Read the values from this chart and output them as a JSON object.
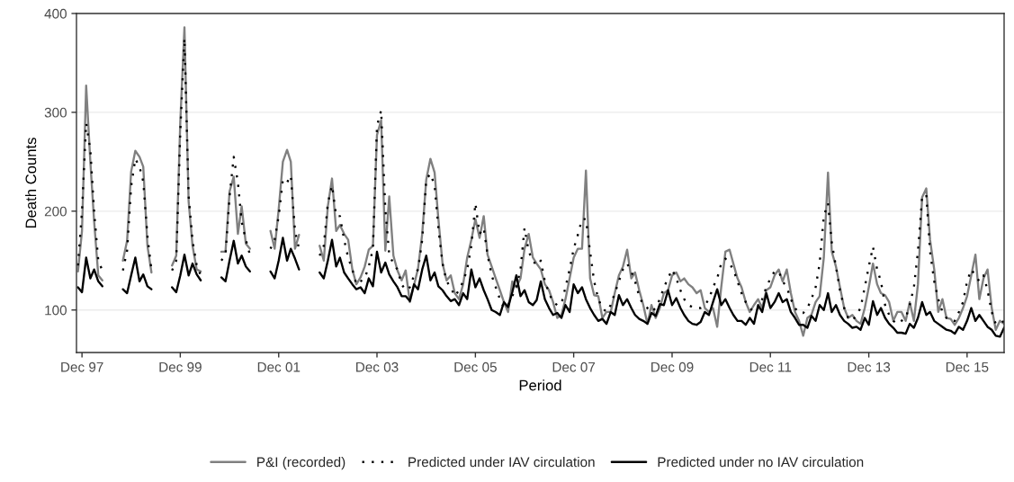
{
  "chart_data": {
    "type": "line",
    "xlabel": "Period",
    "ylabel": "Death Counts",
    "x": [
      "1997-11",
      "1997-12",
      "1998-01",
      "1998-02",
      "1998-03",
      "1998-04",
      "1998-05",
      "1998-07",
      "1998-10",
      "1998-11",
      "1998-12",
      "1999-01",
      "1999-02",
      "1999-03",
      "1999-04",
      "1999-05",
      "1999-07",
      "1999-10",
      "1999-11",
      "1999-12",
      "2000-01",
      "2000-02",
      "2000-03",
      "2000-04",
      "2000-05",
      "2000-07",
      "2000-10",
      "2000-11",
      "2000-12",
      "2001-01",
      "2001-02",
      "2001-03",
      "2001-04",
      "2001-05",
      "2001-07",
      "2001-10",
      "2001-11",
      "2001-12",
      "2002-01",
      "2002-02",
      "2002-03",
      "2002-04",
      "2002-05",
      "2002-07",
      "2002-10",
      "2002-11",
      "2002-12",
      "2003-01",
      "2003-02",
      "2003-03",
      "2003-04",
      "2003-05",
      "2003-06",
      "2003-07",
      "2003-08",
      "2003-09",
      "2003-10",
      "2003-11",
      "2003-12",
      "2004-01",
      "2004-02",
      "2004-03",
      "2004-04",
      "2004-05",
      "2004-06",
      "2004-07",
      "2004-08",
      "2004-09",
      "2004-10",
      "2004-11",
      "2004-12",
      "2005-01",
      "2005-02",
      "2005-03",
      "2005-04",
      "2005-05",
      "2005-06",
      "2005-07",
      "2005-08",
      "2005-09",
      "2005-10",
      "2005-11",
      "2005-12",
      "2006-01",
      "2006-02",
      "2006-03",
      "2006-04",
      "2006-05",
      "2006-06",
      "2006-07",
      "2006-08",
      "2006-09",
      "2006-10",
      "2006-11",
      "2006-12",
      "2007-01",
      "2007-02",
      "2007-03",
      "2007-04",
      "2007-05",
      "2007-06",
      "2007-07",
      "2007-08",
      "2007-09",
      "2007-10",
      "2007-11",
      "2007-12",
      "2008-01",
      "2008-02",
      "2008-03",
      "2008-04",
      "2008-05",
      "2008-06",
      "2008-07",
      "2008-08",
      "2008-09",
      "2008-10",
      "2008-11",
      "2008-12",
      "2009-01",
      "2009-02",
      "2009-03",
      "2009-04",
      "2009-05",
      "2009-06",
      "2009-07",
      "2009-08",
      "2009-09",
      "2009-10",
      "2009-11",
      "2009-12",
      "2010-01",
      "2010-02",
      "2010-03",
      "2010-04",
      "2010-05",
      "2010-06",
      "2010-07",
      "2010-08",
      "2010-09",
      "2010-10",
      "2010-11",
      "2010-12",
      "2011-01",
      "2011-02",
      "2011-03",
      "2011-04",
      "2011-05",
      "2011-06",
      "2011-07",
      "2011-08",
      "2011-09",
      "2011-10",
      "2011-11",
      "2011-12",
      "2012-01",
      "2012-02",
      "2012-03",
      "2012-04",
      "2012-05",
      "2012-06",
      "2012-07",
      "2012-08",
      "2012-09",
      "2012-10",
      "2012-11",
      "2012-12",
      "2013-01",
      "2013-02",
      "2013-03",
      "2013-04",
      "2013-05",
      "2013-06",
      "2013-07",
      "2013-08",
      "2013-09",
      "2013-10",
      "2013-11",
      "2013-12",
      "2014-01",
      "2014-02",
      "2014-03",
      "2014-04",
      "2014-05",
      "2014-06",
      "2014-07",
      "2014-08",
      "2014-09",
      "2014-10",
      "2014-11",
      "2014-12",
      "2015-01",
      "2015-02",
      "2015-03",
      "2015-04",
      "2015-05",
      "2015-06",
      "2015-07",
      "2015-08",
      "2015-09",
      "2015-10",
      "2015-11",
      "2015-12",
      "2016-01",
      "2016-02",
      "2016-03",
      "2016-04",
      "2016-05",
      "2016-06",
      "2016-07",
      "2016-08",
      "2016-09"
    ],
    "series": [
      {
        "name": "P&I (recorded)",
        "color": "#808080",
        "line_style": "solid",
        "values": [
          139,
          180,
          327,
          250,
          190,
          135,
          130,
          null,
          150,
          170,
          240,
          261,
          255,
          245,
          165,
          138,
          null,
          145,
          155,
          290,
          386,
          210,
          165,
          141,
          139,
          null,
          159,
          159,
          220,
          235,
          177,
          205,
          167,
          162,
          null,
          180,
          162,
          202,
          250,
          262,
          250,
          162,
          176,
          null,
          165,
          150,
          205,
          233,
          180,
          186,
          177,
          171,
          141,
          126,
          133,
          144,
          161,
          165,
          277,
          292,
          160,
          215,
          155,
          140,
          130,
          140,
          108,
          125,
          142,
          177,
          232,
          253,
          239,
          192,
          147,
          130,
          135,
          117,
          111,
          126,
          153,
          171,
          192,
          173,
          195,
          156,
          144,
          132,
          120,
          108,
          98,
          129,
          123,
          132,
          162,
          177,
          153,
          147,
          141,
          126,
          120,
          108,
          92,
          95,
          111,
          132,
          153,
          162,
          162,
          241,
          132,
          115,
          114,
          92,
          98,
          98,
          117,
          135,
          144,
          161,
          132,
          138,
          120,
          105,
          86,
          105,
          92,
          102,
          117,
          120,
          135,
          138,
          129,
          132,
          126,
          123,
          117,
          120,
          102,
          98,
          102,
          83,
          123,
          159,
          161,
          147,
          132,
          123,
          108,
          98,
          105,
          111,
          102,
          120,
          123,
          135,
          141,
          129,
          141,
          117,
          98,
          89,
          74,
          92,
          95,
          108,
          114,
          153,
          239,
          159,
          144,
          123,
          102,
          92,
          95,
          89,
          86,
          102,
          123,
          147,
          126,
          117,
          115,
          108,
          89,
          98,
          98,
          89,
          108,
          89,
          126,
          214,
          223,
          171,
          141,
          98,
          111,
          92,
          91,
          85,
          92,
          102,
          114,
          135,
          156,
          111,
          132,
          141,
          102,
          80,
          89,
          86
        ]
      },
      {
        "name": "Predicted under IAV circulation",
        "color": "#000000",
        "line_style": "dotted",
        "values": [
          145,
          200,
          289,
          262,
          200,
          150,
          140,
          null,
          140,
          160,
          225,
          253,
          245,
          230,
          175,
          140,
          null,
          140,
          150,
          280,
          375,
          215,
          170,
          145,
          135,
          null,
          150,
          156,
          215,
          255,
          229,
          189,
          171,
          156,
          null,
          162,
          171,
          195,
          232,
          229,
          236,
          180,
          162,
          null,
          155,
          165,
          208,
          226,
          195,
          195,
          171,
          153,
          141,
          126,
          129,
          132,
          144,
          162,
          286,
          302,
          202,
          156,
          147,
          141,
          126,
          120,
          123,
          135,
          141,
          171,
          232,
          238,
          226,
          183,
          147,
          129,
          123,
          114,
          120,
          129,
          141,
          165,
          208,
          177,
          183,
          156,
          135,
          123,
          111,
          102,
          105,
          114,
          123,
          141,
          183,
          159,
          150,
          145,
          150,
          129,
          117,
          108,
          105,
          106,
          123,
          141,
          162,
          176,
          192,
          192,
          159,
          129,
          111,
          102,
          98,
          105,
          117,
          129,
          141,
          147,
          139,
          129,
          114,
          105,
          102,
          98,
          102,
          111,
          123,
          132,
          141,
          132,
          120,
          111,
          105,
          103,
          102,
          102,
          105,
          111,
          123,
          132,
          147,
          152,
          147,
          141,
          129,
          117,
          108,
          102,
          98,
          102,
          111,
          123,
          132,
          139,
          139,
          129,
          123,
          111,
          102,
          97,
          97,
          102,
          111,
          123,
          147,
          195,
          208,
          168,
          144,
          120,
          102,
          92,
          89,
          95,
          102,
          123,
          144,
          164,
          141,
          129,
          105,
          95,
          89,
          86,
          89,
          92,
          105,
          123,
          159,
          214,
          217,
          159,
          129,
          111,
          98,
          92,
          89,
          89,
          98,
          108,
          129,
          141,
          135,
          129,
          135,
          120,
          98,
          86,
          86,
          89
        ]
      },
      {
        "name": "Predicted under no IAV circulation",
        "color": "#000000",
        "line_style": "solid",
        "values": [
          123,
          118,
          153,
          132,
          141,
          129,
          124,
          null,
          121,
          117,
          135,
          153,
          129,
          136,
          124,
          121,
          null,
          123,
          118,
          135,
          156,
          135,
          147,
          136,
          130,
          null,
          133,
          129,
          150,
          170,
          147,
          155,
          144,
          139,
          null,
          139,
          132,
          150,
          173,
          150,
          162,
          152,
          141,
          null,
          138,
          132,
          150,
          171,
          144,
          153,
          138,
          132,
          126,
          121,
          123,
          117,
          132,
          124,
          159,
          138,
          148,
          136,
          129,
          123,
          114,
          114,
          109,
          126,
          121,
          141,
          155,
          130,
          138,
          124,
          120,
          114,
          109,
          111,
          105,
          117,
          111,
          141,
          123,
          132,
          120,
          111,
          100,
          98,
          95,
          108,
          103,
          118,
          135,
          114,
          120,
          108,
          105,
          110,
          129,
          111,
          102,
          95,
          97,
          92,
          105,
          98,
          126,
          117,
          123,
          111,
          102,
          95,
          89,
          91,
          86,
          98,
          95,
          115,
          105,
          111,
          102,
          95,
          91,
          89,
          86,
          97,
          94,
          106,
          105,
          120,
          105,
          112,
          102,
          95,
          89,
          86,
          85,
          88,
          98,
          95,
          108,
          121,
          105,
          111,
          102,
          95,
          89,
          89,
          85,
          92,
          86,
          105,
          98,
          117,
          102,
          108,
          117,
          108,
          111,
          98,
          92,
          85,
          85,
          82,
          94,
          89,
          105,
          100,
          117,
          98,
          105,
          95,
          89,
          86,
          82,
          83,
          80,
          92,
          85,
          109,
          95,
          102,
          92,
          86,
          82,
          77,
          77,
          76,
          86,
          82,
          92,
          108,
          95,
          98,
          89,
          86,
          83,
          80,
          79,
          76,
          83,
          80,
          89,
          102,
          89,
          95,
          89,
          83,
          80,
          74,
          73,
          82
        ]
      }
    ],
    "xlim": [
      "1997-10-21",
      "2016-09-01"
    ],
    "xticks": [
      {
        "value": "1997-12-01",
        "label": "Dec 97"
      },
      {
        "value": "1999-12-01",
        "label": "Dec 99"
      },
      {
        "value": "2001-12-01",
        "label": "Dec 01"
      },
      {
        "value": "2003-12-01",
        "label": "Dec 03"
      },
      {
        "value": "2005-12-01",
        "label": "Dec 05"
      },
      {
        "value": "2007-12-01",
        "label": "Dec 07"
      },
      {
        "value": "2009-12-01",
        "label": "Dec 09"
      },
      {
        "value": "2011-12-01",
        "label": "Dec 11"
      },
      {
        "value": "2013-12-01",
        "label": "Dec 13"
      },
      {
        "value": "2015-12-01",
        "label": "Dec 15"
      }
    ],
    "ylim": [
      57,
      400
    ],
    "yticks": [
      100,
      200,
      300,
      400
    ],
    "grid": "y",
    "legend": "bottom"
  }
}
